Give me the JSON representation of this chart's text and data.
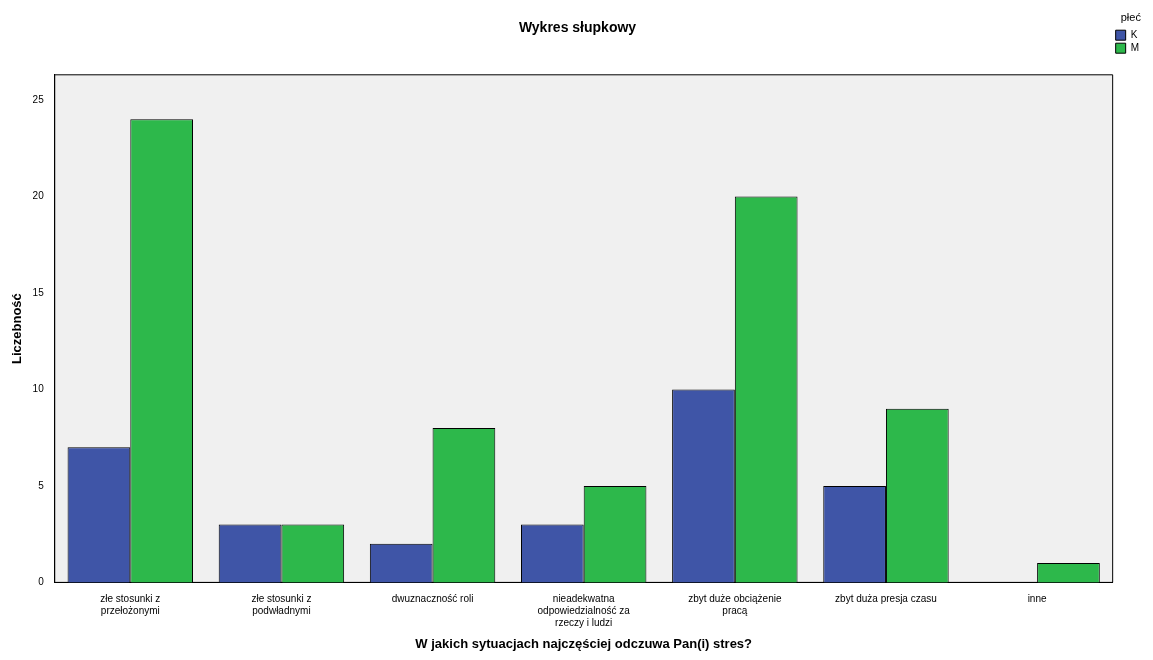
{
  "chart_data": {
    "type": "bar",
    "title": "Wykres słupkowy",
    "xlabel": "W jakich sytuacjach najczęściej odczuwa Pan(i) stres?",
    "ylabel": "Liczebność",
    "legend_title": "płeć",
    "categories": [
      "złe stosunki z przełożonymi",
      "złe stosunki z podwładnymi",
      "dwuznaczność roli",
      "nieadekwatna odpowiedzialność za rzeczy i ludzi",
      "zbyt duże obciążenie pracą",
      "zbyt duża presja czasu",
      "inne"
    ],
    "series": [
      {
        "name": "K",
        "color": "#3f55a7",
        "values": [
          7,
          3,
          2,
          3,
          10,
          5,
          0
        ]
      },
      {
        "name": "M",
        "color": "#2db84b",
        "values": [
          24,
          3,
          8,
          5,
          20,
          9,
          1
        ]
      }
    ],
    "ylim": [
      0,
      26.3
    ],
    "yticks": [
      0,
      5,
      10,
      15,
      20,
      25
    ],
    "legend": "top right"
  }
}
